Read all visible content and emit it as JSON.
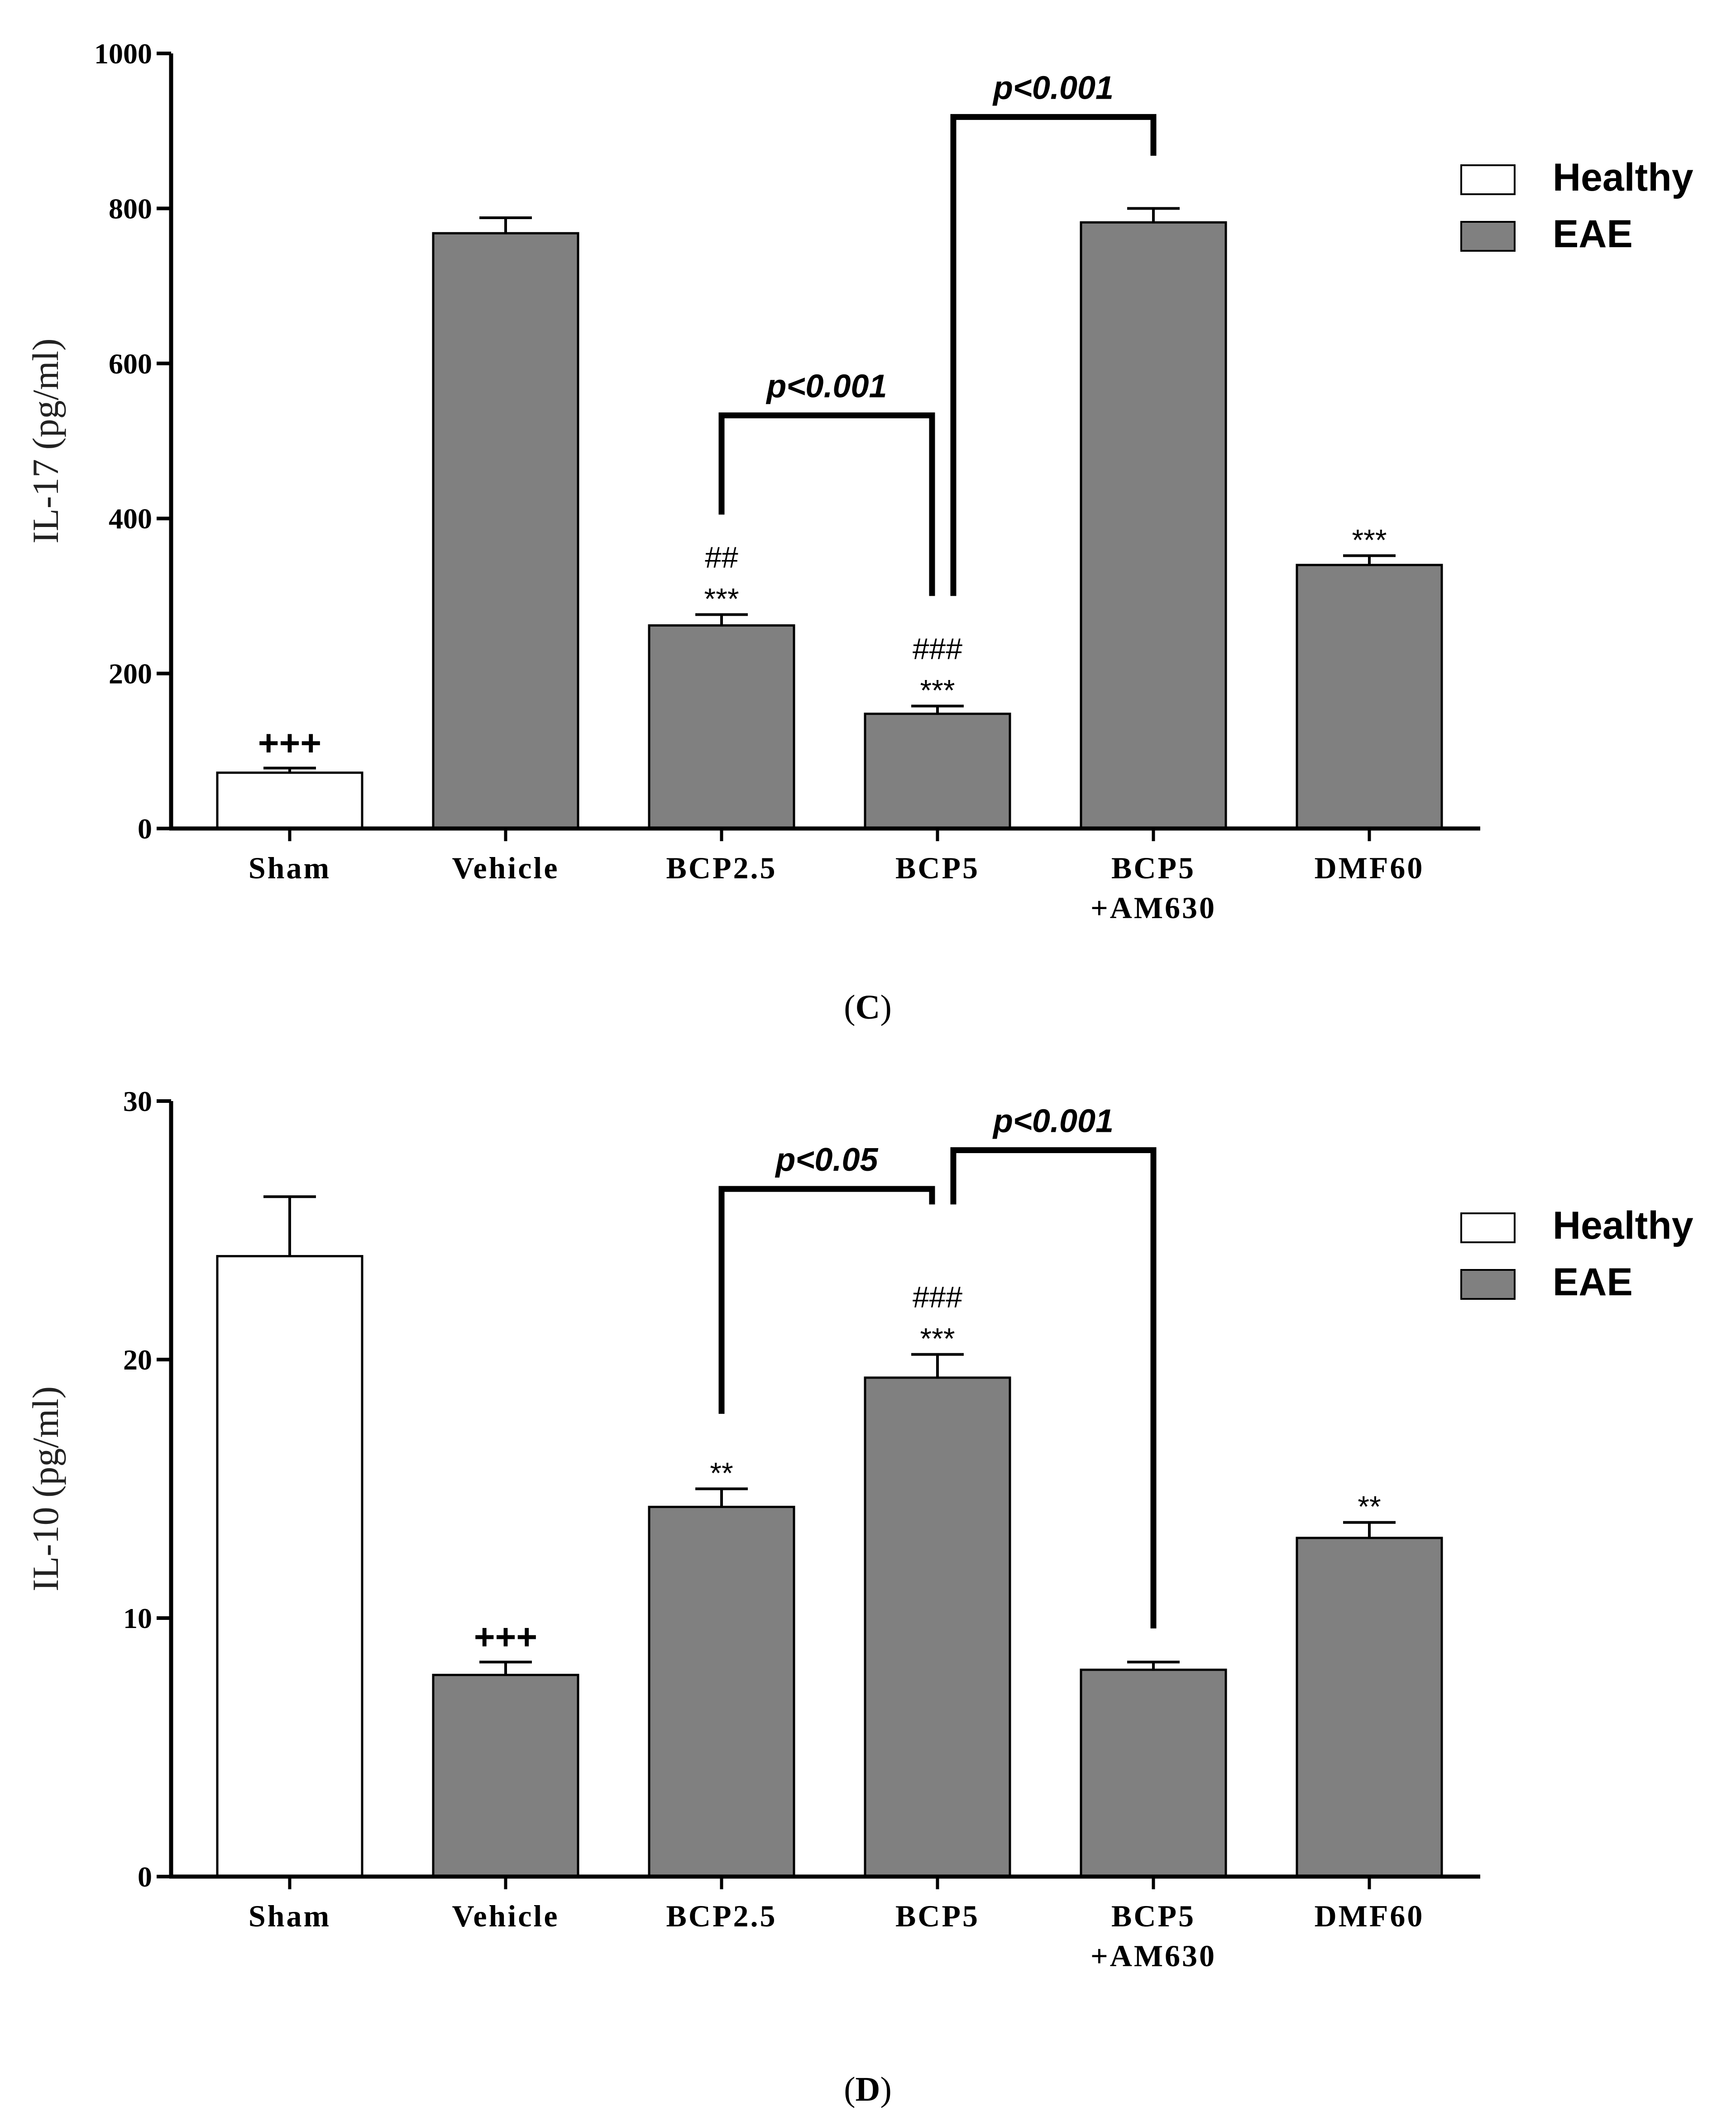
{
  "colors": {
    "healthy": "#ffffff",
    "eae": "#808080",
    "axis": "#000000"
  },
  "legend": [
    {
      "label": "Healthy",
      "color": "#ffffff"
    },
    {
      "label": "EAE",
      "color": "#808080"
    }
  ],
  "chart_data": [
    {
      "type": "bar",
      "panel": "C",
      "caption": [
        "(",
        "C",
        ")"
      ],
      "ylabel": "IL-17 (pg/ml)",
      "ylim": [
        0,
        1000
      ],
      "yticks": [
        0,
        200,
        400,
        600,
        800,
        1000
      ],
      "categories": [
        [
          "Sham"
        ],
        [
          "Vehicle"
        ],
        [
          "BCP2.5"
        ],
        [
          "BCP5"
        ],
        [
          "BCP5",
          "+AM630"
        ],
        [
          "DMF60"
        ]
      ],
      "groups": [
        "Healthy",
        "EAE",
        "EAE",
        "EAE",
        "EAE",
        "EAE"
      ],
      "values": [
        72,
        768,
        262,
        148,
        782,
        340
      ],
      "errors": [
        6,
        20,
        14,
        10,
        18,
        12
      ],
      "annotations": [
        [
          "+++"
        ],
        [],
        [
          "##",
          "***"
        ],
        [
          "###",
          "***"
        ],
        [],
        [
          "***"
        ]
      ],
      "brackets": [
        {
          "from": 2,
          "to": 3,
          "label": "p<0.001"
        },
        {
          "from": 3,
          "to": 4,
          "label": "p<0.001"
        }
      ]
    },
    {
      "type": "bar",
      "panel": "D",
      "caption": [
        "(",
        "D",
        ")"
      ],
      "ylabel": "IL-10 (pg/ml)",
      "ylim": [
        0,
        30
      ],
      "yticks": [
        0,
        10,
        20,
        30
      ],
      "categories": [
        [
          "Sham"
        ],
        [
          "Vehicle"
        ],
        [
          "BCP2.5"
        ],
        [
          "BCP5"
        ],
        [
          "BCP5",
          "+AM630"
        ],
        [
          "DMF60"
        ]
      ],
      "groups": [
        "Healthy",
        "EAE",
        "EAE",
        "EAE",
        "EAE",
        "EAE"
      ],
      "values": [
        24.0,
        7.8,
        14.3,
        19.3,
        8.0,
        13.1
      ],
      "errors": [
        2.3,
        0.5,
        0.7,
        0.9,
        0.3,
        0.6
      ],
      "annotations": [
        [],
        [
          "+++"
        ],
        [
          "**"
        ],
        [
          "###",
          "***"
        ],
        [],
        [
          "**"
        ]
      ],
      "brackets": [
        {
          "from": 2,
          "to": 3,
          "label": "p<0.05"
        },
        {
          "from": 3,
          "to": 4,
          "label": "p<0.001"
        }
      ]
    }
  ]
}
